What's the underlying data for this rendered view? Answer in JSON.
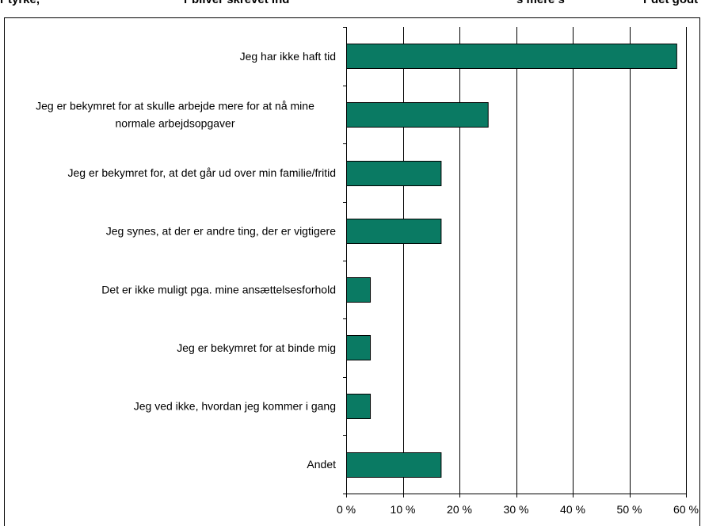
{
  "caption": {
    "left": "r tyrke,",
    "middle": "r bliver skrevet ind",
    "right": "s mere s",
    "far_right": "r det godt"
  },
  "colors": {
    "bar_fill": "#0a7a63",
    "bar_stroke": "#000000",
    "grid": "#000000"
  },
  "chart_data": {
    "type": "bar",
    "orientation": "horizontal",
    "categories": [
      "Jeg har ikke haft tid",
      "Jeg er bekymret for at skulle arbejde mere for at nå mine normale arbejdsopgaver",
      "Jeg er bekymret for, at det går ud over min familie/fritid",
      "Jeg synes, at der er andre ting, der er vigtigere",
      "Det er ikke muligt pga. mine ansættelsesforhold",
      "Jeg er bekymret for at binde mig",
      "Jeg ved ikke, hvordan jeg kommer i gang",
      "Andet"
    ],
    "category_lines": [
      [
        "Jeg har ikke haft tid"
      ],
      [
        "Jeg er bekymret for at skulle arbejde mere for at nå mine",
        "normale arbejdsopgaver"
      ],
      [
        "Jeg er bekymret for, at det går ud over min familie/fritid"
      ],
      [
        "Jeg synes, at der er andre ting, der er vigtigere"
      ],
      [
        "Det er ikke muligt pga. mine ansættelsesforhold"
      ],
      [
        "Jeg er bekymret for at binde mig"
      ],
      [
        "Jeg ved ikke, hvordan jeg kommer i gang"
      ],
      [
        "Andet"
      ]
    ],
    "values": [
      58.3,
      25,
      16.7,
      16.7,
      4.2,
      4.2,
      4.2,
      16.7
    ],
    "xlim": [
      0,
      60
    ],
    "xticks": [
      0,
      10,
      20,
      30,
      40,
      50,
      60
    ],
    "xtick_labels": [
      "0 %",
      "10 %",
      "20 %",
      "30 %",
      "40 %",
      "50 %",
      "60 %"
    ],
    "grid": "vertical",
    "legend": "none"
  }
}
